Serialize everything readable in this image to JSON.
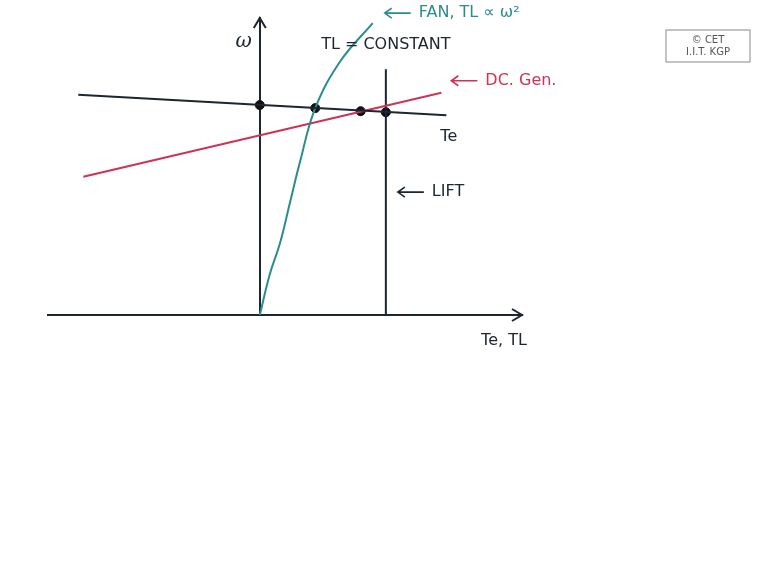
{
  "chart_data": {
    "type": "line",
    "xlabel": "Te, TL",
    "ylabel": "ω",
    "tick_labels": false,
    "grid": false,
    "xlim": [
      -21,
      26
    ],
    "ylim": [
      0,
      29
    ],
    "series": [
      {
        "name": "Te",
        "color": "#1c2530",
        "x": [
          -18,
          18.5
        ],
        "values": [
          21.5,
          19.5
        ]
      },
      {
        "name": "FAN, TL ∝ ω²",
        "color": "#2b8c8c",
        "x": [
          0,
          1,
          2,
          3,
          4,
          5.5,
          8,
          11.2
        ],
        "values": [
          0,
          4,
          7,
          11,
          15,
          20.2,
          24.8,
          28.5
        ]
      },
      {
        "name": "DC. Gen.",
        "color": "#cc3355",
        "x": [
          -17.5,
          18
        ],
        "values": [
          13.5,
          21.7
        ]
      },
      {
        "name": "LIFT",
        "color": "#1c2530",
        "x": [
          12.5,
          12.5
        ],
        "values": [
          0,
          24
        ]
      }
    ],
    "operating_points": {
      "color": "#111111",
      "x": [
        0,
        5.5,
        10,
        12.5
      ],
      "values": [
        20.5,
        20.2,
        19.9,
        19.8
      ]
    },
    "annotations": [
      "TL = CONSTANT"
    ],
    "watermark": [
      "© CET",
      "I.I.T. KGP"
    ]
  }
}
